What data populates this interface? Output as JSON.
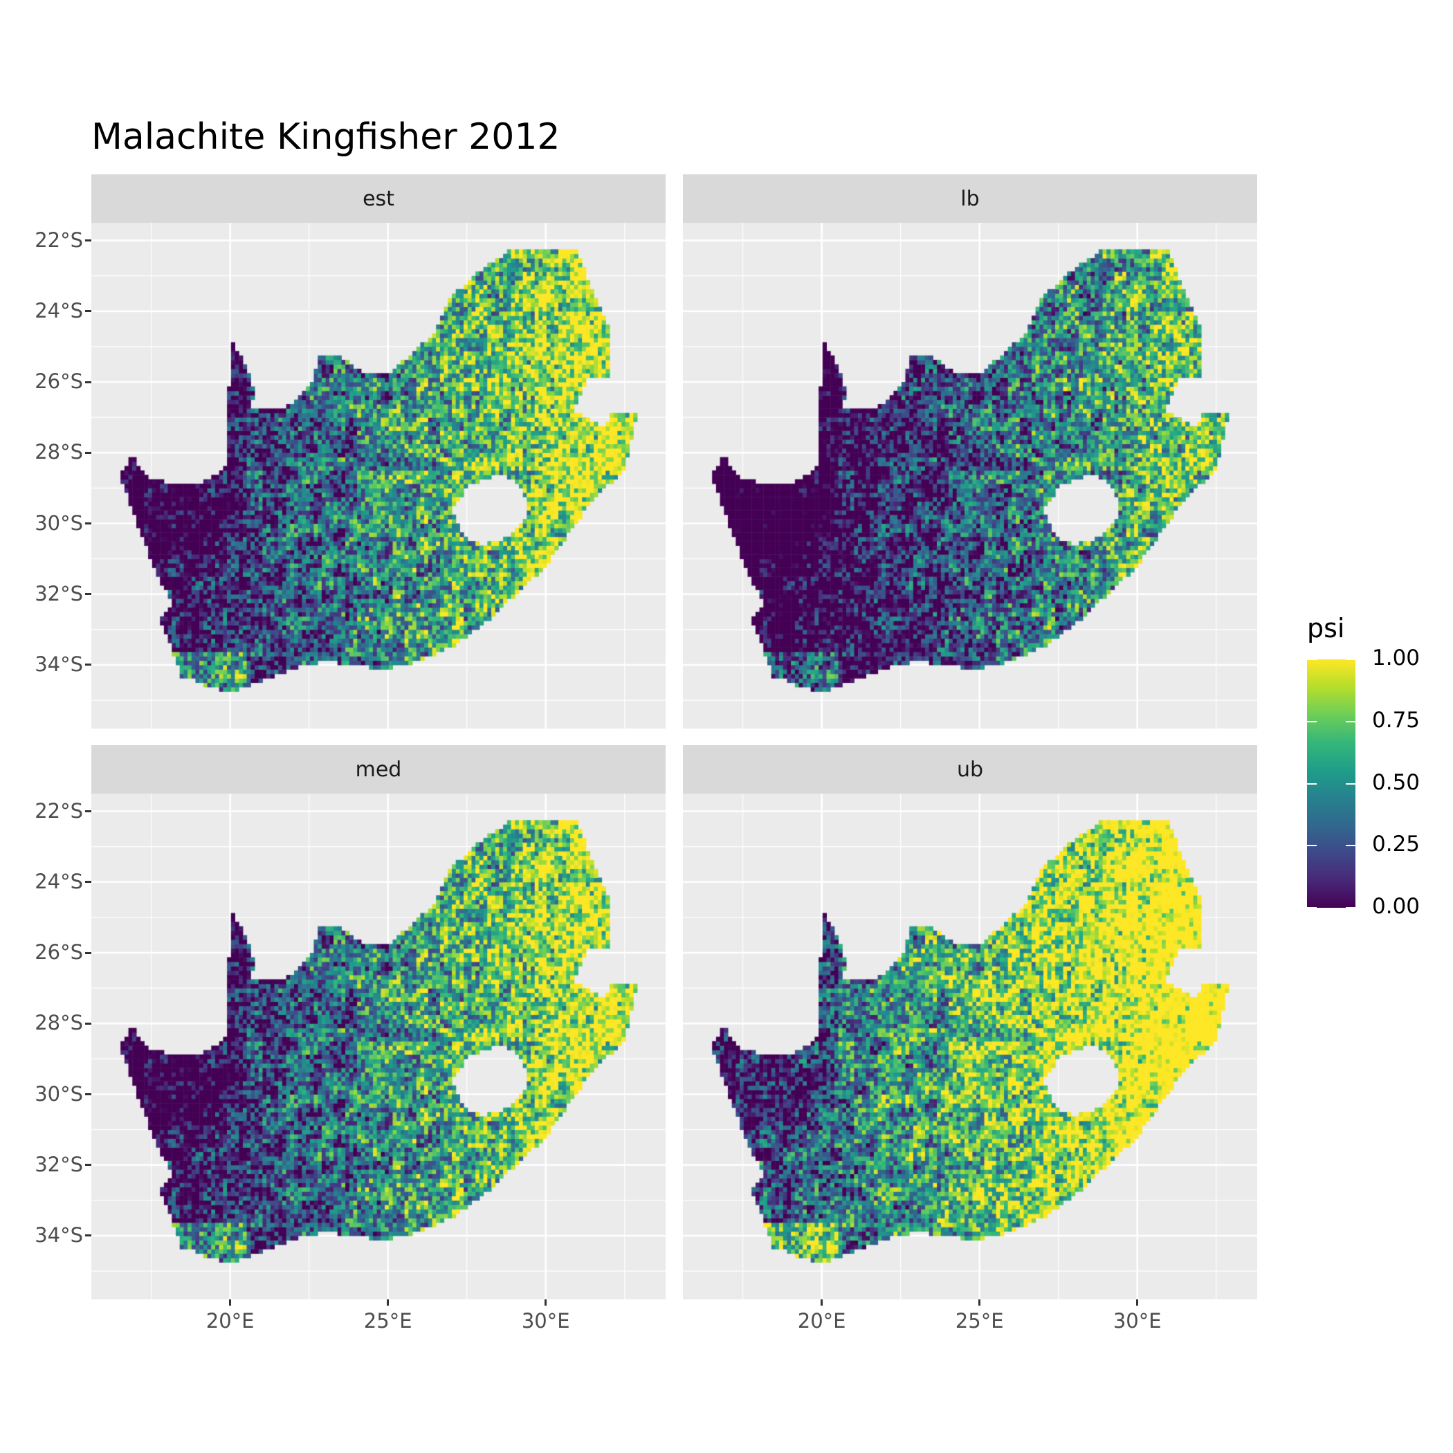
{
  "chart_data": {
    "type": "heatmap",
    "title": "Malachite Kingfisher 2012",
    "facets": [
      "est",
      "lb",
      "med",
      "ub"
    ],
    "xlabel": "",
    "ylabel": "",
    "x_ticks": [
      "20°E",
      "25°E",
      "30°E"
    ],
    "x_tick_values": [
      20,
      25,
      30
    ],
    "y_ticks": [
      "22°S",
      "24°S",
      "26°S",
      "28°S",
      "30°S",
      "32°S",
      "34°S"
    ],
    "y_tick_values": [
      -22,
      -24,
      -26,
      -28,
      -30,
      -32,
      -34
    ],
    "xlim": [
      15.6,
      33.8
    ],
    "ylim": [
      -35.8,
      -21.5
    ],
    "colorbar": {
      "title": "psi",
      "colormap": "viridis",
      "ticks": [
        "0.00",
        "0.25",
        "0.50",
        "0.75",
        "1.00"
      ],
      "range": [
        0,
        1
      ]
    },
    "grid": true,
    "legend_placement": "right",
    "colors": {
      "panel_bg": "#ebebeb",
      "strip_bg": "#d9d9d9",
      "grid": "#ffffff"
    }
  }
}
